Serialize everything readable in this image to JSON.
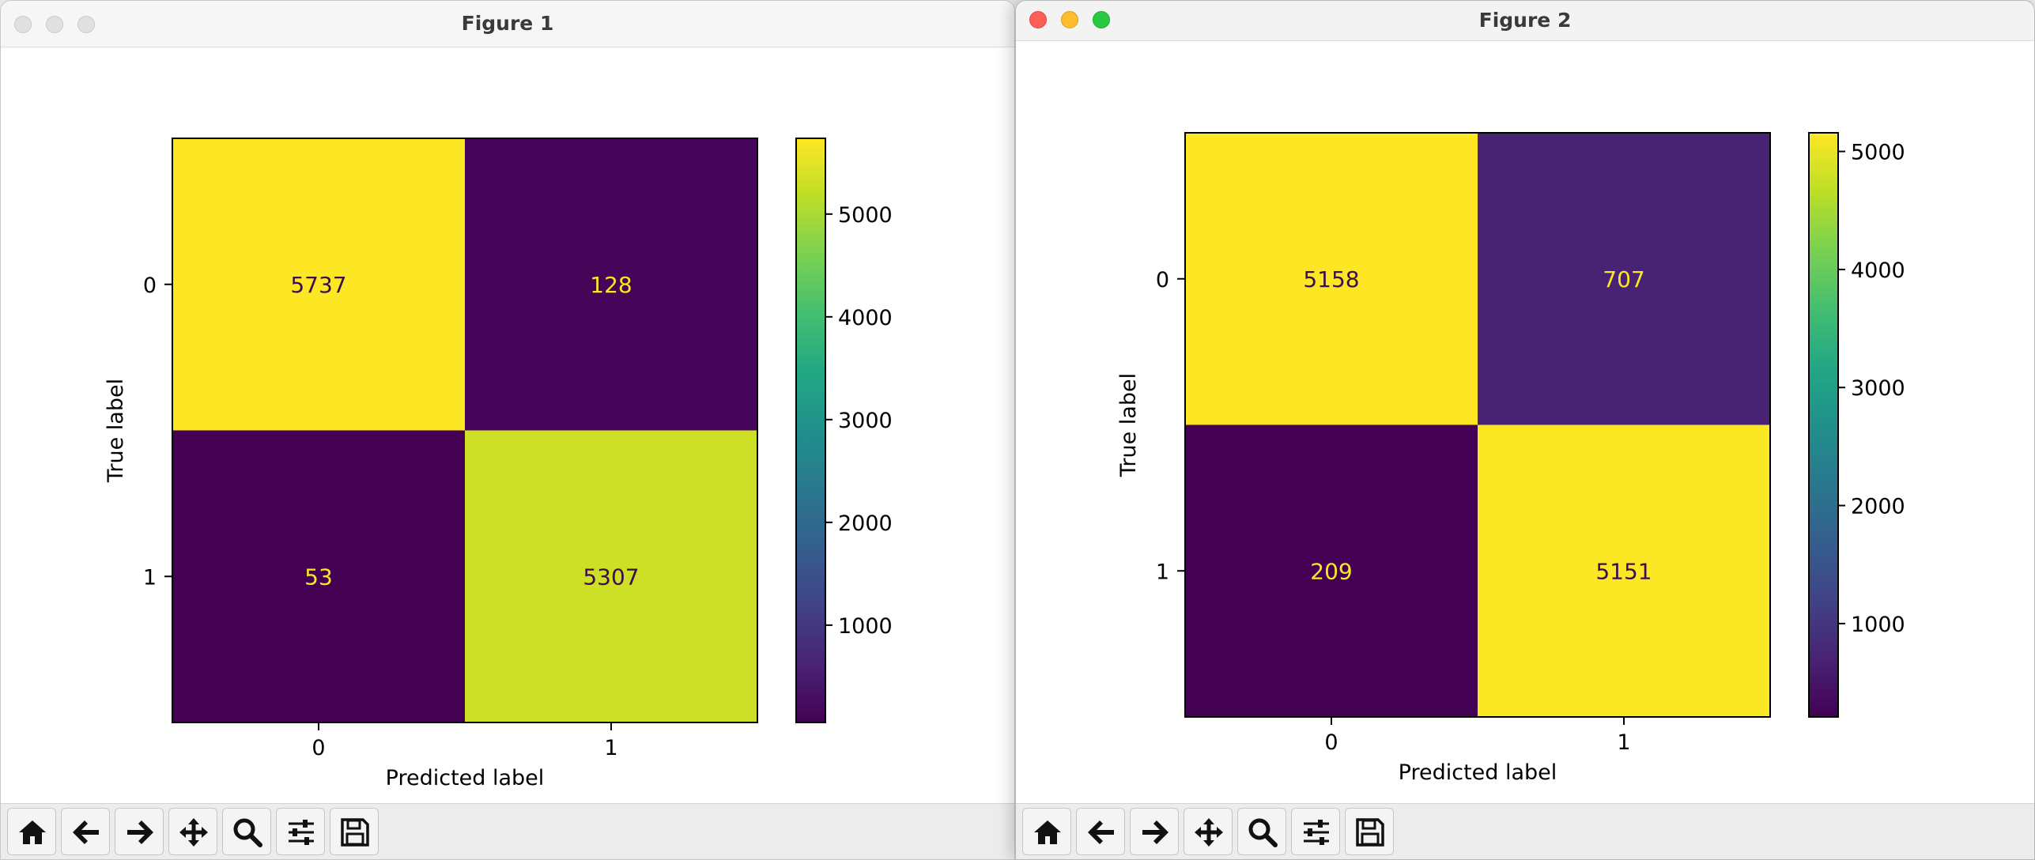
{
  "figures": [
    {
      "window_title": "Figure 1",
      "chart_data": {
        "type": "heatmap",
        "xlabel": "Predicted label",
        "ylabel": "True label",
        "x_ticks": [
          "0",
          "1"
        ],
        "y_ticks": [
          "0",
          "1"
        ],
        "values": [
          [
            5737,
            128
          ],
          [
            53,
            5307
          ]
        ],
        "colormap": "viridis",
        "colorbar": {
          "ticks": [
            1000,
            2000,
            3000,
            4000,
            5000
          ],
          "range": [
            53,
            5737
          ]
        }
      }
    },
    {
      "window_title": "Figure 2",
      "chart_data": {
        "type": "heatmap",
        "xlabel": "Predicted label",
        "ylabel": "True label",
        "x_ticks": [
          "0",
          "1"
        ],
        "y_ticks": [
          "0",
          "1"
        ],
        "values": [
          [
            5158,
            707
          ],
          [
            209,
            5151
          ]
        ],
        "colormap": "viridis",
        "colorbar": {
          "ticks": [
            1000,
            2000,
            3000,
            4000,
            5000
          ],
          "range": [
            209,
            5158
          ]
        }
      }
    }
  ],
  "toolbar": {
    "buttons": [
      "home-icon",
      "back-arrow-icon",
      "forward-arrow-icon",
      "pan-move-icon",
      "zoom-magnifier-icon",
      "configure-sliders-icon",
      "save-disk-icon"
    ]
  }
}
